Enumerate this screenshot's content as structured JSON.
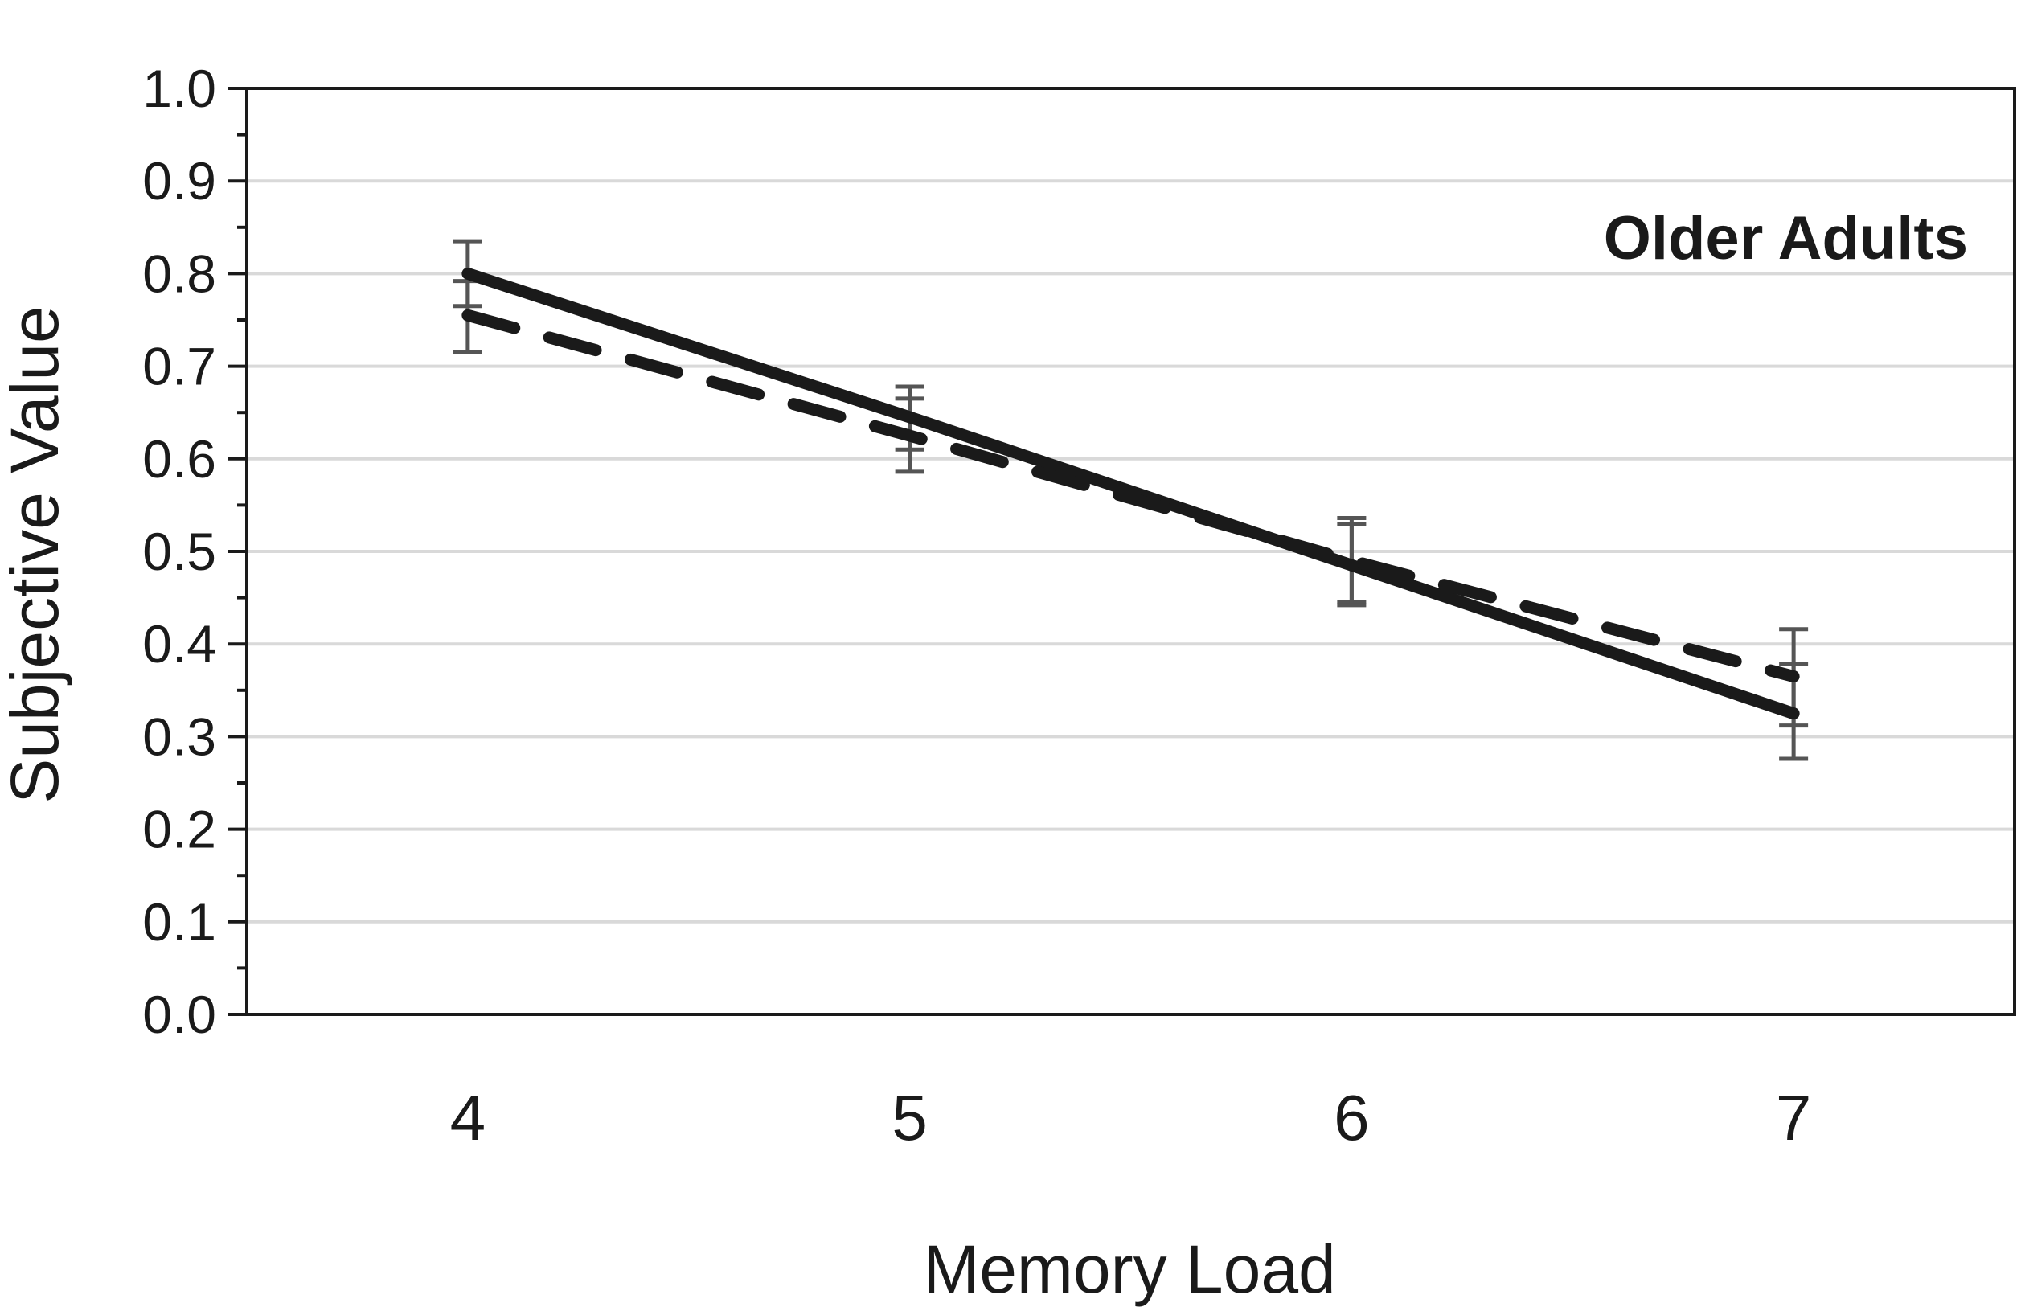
{
  "chart_data": {
    "type": "line",
    "panel_label": "Older Adults",
    "xlabel": "Memory Load",
    "ylabel": "Subjective Value",
    "categories": [
      "4",
      "5",
      "6",
      "7"
    ],
    "x": [
      4,
      5,
      6,
      7
    ],
    "ylim": [
      0,
      1.0
    ],
    "yticks": [
      "0.0",
      "0.1",
      "0.2",
      "0.3",
      "0.4",
      "0.5",
      "0.6",
      "0.7",
      "0.8",
      "0.9",
      "1.0"
    ],
    "grid": true,
    "series": [
      {
        "style": "solid",
        "color": "#1a1a1a",
        "values": [
          0.8,
          0.645,
          0.485,
          0.325
        ],
        "error": [
          [
            0.765,
            0.835
          ],
          [
            0.61,
            0.678
          ],
          [
            0.445,
            0.53
          ],
          [
            0.276,
            0.378
          ]
        ]
      },
      {
        "style": "dashed",
        "color": "#1a1a1a",
        "values": [
          0.755,
          0.625,
          0.49,
          0.365
        ],
        "error": [
          [
            0.715,
            0.792
          ],
          [
            0.586,
            0.665
          ],
          [
            0.442,
            0.536
          ],
          [
            0.312,
            0.416
          ]
        ]
      }
    ],
    "colors": {
      "line": "#1a1a1a",
      "errorbar": "#555555",
      "grid": "#d9d9d9",
      "frame": "#1a1a1a"
    }
  }
}
